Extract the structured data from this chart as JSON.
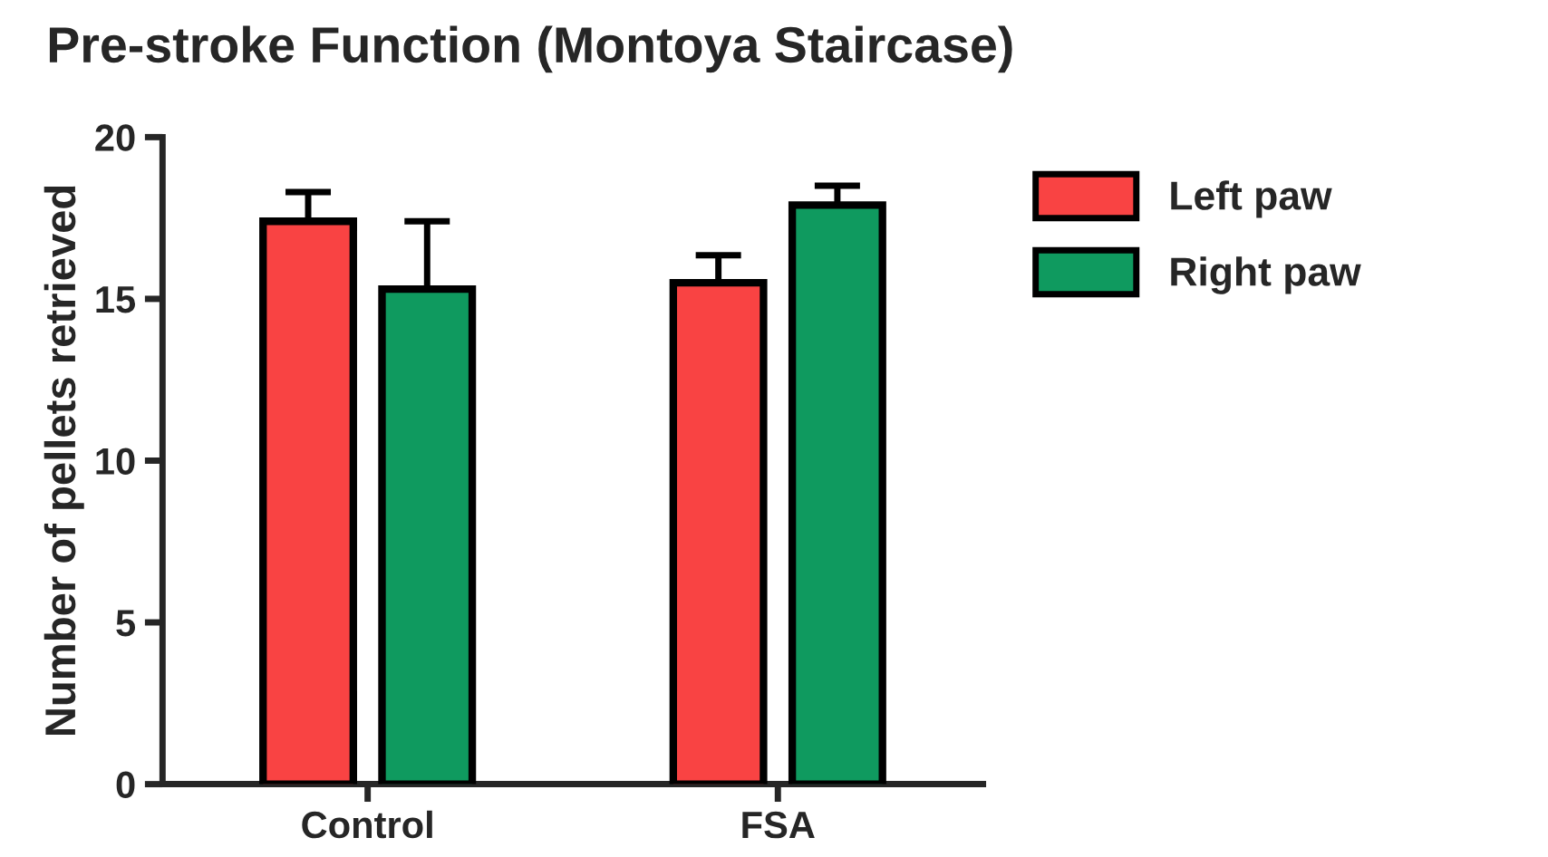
{
  "chart_data": {
    "type": "bar",
    "title": "Pre-stroke Function (Montoya Staircase)",
    "ylabel": "Number of pellets retrieved",
    "categories": [
      "Control",
      "FSA"
    ],
    "series": [
      {
        "name": "Left paw",
        "color": "#f94343",
        "values": [
          17.4,
          15.5
        ],
        "errors": [
          0.9,
          0.85
        ]
      },
      {
        "name": "Right paw",
        "color": "#0f9a5f",
        "values": [
          15.3,
          17.9
        ],
        "errors": [
          2.1,
          0.6
        ]
      }
    ],
    "ylim": [
      0,
      20
    ],
    "yticks": [
      0,
      5,
      10,
      15,
      20
    ],
    "grid": false,
    "legend": "right"
  }
}
